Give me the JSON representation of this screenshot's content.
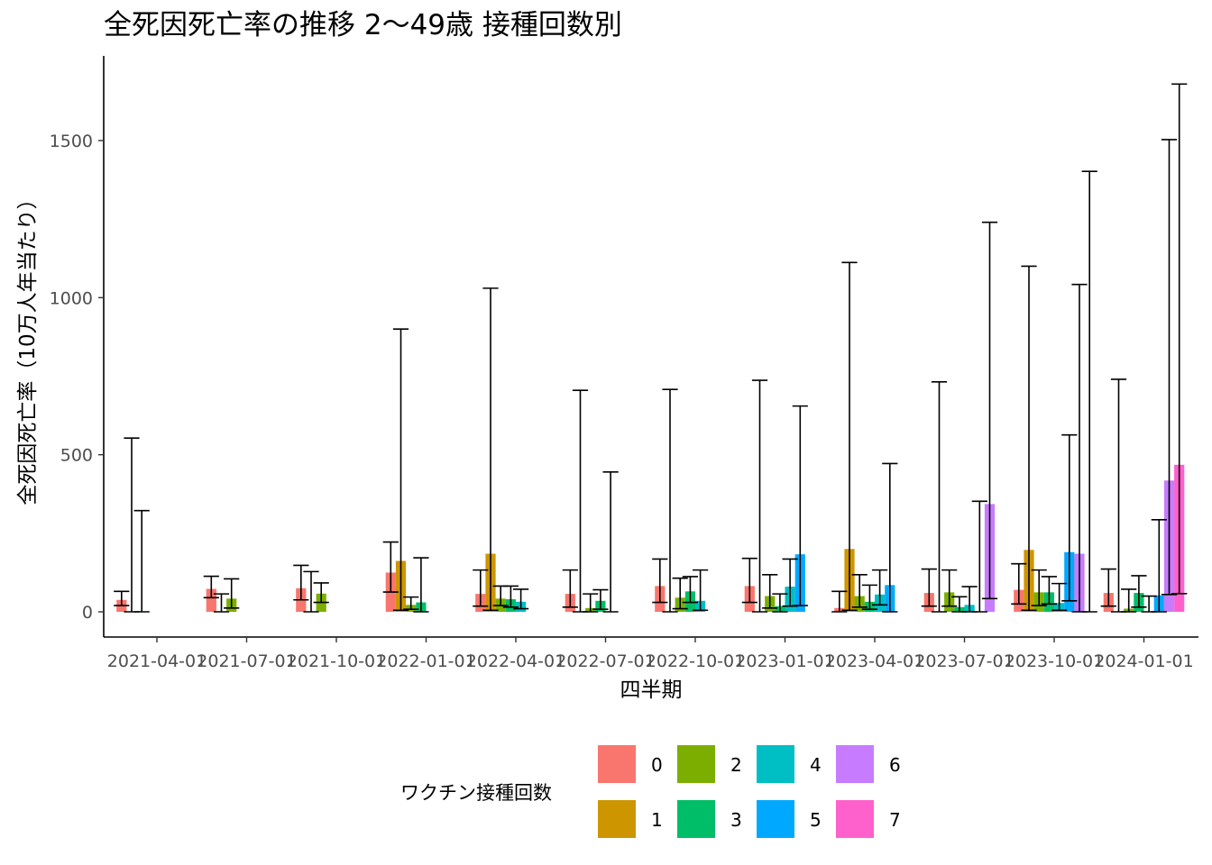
{
  "chart_data": {
    "type": "bar",
    "title": "全死因死亡率の推移  2〜49歳  接種回数別",
    "xlabel": "四半期",
    "ylabel": "全死因死亡率（10万人年当たり）",
    "ylim": [
      -80,
      1750
    ],
    "y_ticks": [
      0,
      500,
      1000,
      1500
    ],
    "grid": false,
    "categories": [
      "2021-04-01",
      "2021-07-01",
      "2021-10-01",
      "2022-01-01",
      "2022-04-01",
      "2022-07-01",
      "2022-10-01",
      "2023-01-01",
      "2023-04-01",
      "2023-07-01",
      "2023-10-01",
      "2024-01-01"
    ],
    "legend": {
      "title": "ワクチン接種回数",
      "position": "bottom",
      "items": [
        {
          "label": "0",
          "color": "#F8766D"
        },
        {
          "label": "1",
          "color": "#CD9600"
        },
        {
          "label": "2",
          "color": "#7CAE00"
        },
        {
          "label": "3",
          "color": "#00BE67"
        },
        {
          "label": "4",
          "color": "#00BFC4"
        },
        {
          "label": "5",
          "color": "#00A9FF"
        },
        {
          "label": "6",
          "color": "#C77CFF"
        },
        {
          "label": "7",
          "color": "#FF61CC"
        }
      ]
    },
    "series": [
      {
        "dose": "0",
        "color": "#F8766D",
        "values": [
          {
            "q": 0,
            "y": 38,
            "lo": 20,
            "hi": 65
          },
          {
            "q": 1,
            "y": 73,
            "lo": 45,
            "hi": 113
          },
          {
            "q": 2,
            "y": 75,
            "lo": 38,
            "hi": 148
          },
          {
            "q": 3,
            "y": 125,
            "lo": 63,
            "hi": 222
          },
          {
            "q": 4,
            "y": 57,
            "lo": 18,
            "hi": 133
          },
          {
            "q": 5,
            "y": 57,
            "lo": 15,
            "hi": 133
          },
          {
            "q": 6,
            "y": 82,
            "lo": 30,
            "hi": 168
          },
          {
            "q": 7,
            "y": 82,
            "lo": 30,
            "hi": 170
          },
          {
            "q": 8,
            "y": 12,
            "lo": 0,
            "hi": 65
          },
          {
            "q": 9,
            "y": 60,
            "lo": 18,
            "hi": 136
          },
          {
            "q": 10,
            "y": 70,
            "lo": 25,
            "hi": 153
          },
          {
            "q": 11,
            "y": 60,
            "lo": 18,
            "hi": 136
          }
        ]
      },
      {
        "dose": "1",
        "color": "#CD9600",
        "values": [
          {
            "q": 0,
            "y": 0,
            "lo": 0,
            "hi": 553
          },
          {
            "q": 1,
            "y": 0,
            "lo": 0,
            "hi": 57
          },
          {
            "q": 2,
            "y": 0,
            "lo": 0,
            "hi": 128
          },
          {
            "q": 3,
            "y": 162,
            "lo": 5,
            "hi": 900
          },
          {
            "q": 4,
            "y": 185,
            "lo": 5,
            "hi": 1030
          },
          {
            "q": 5,
            "y": 0,
            "lo": 0,
            "hi": 705
          },
          {
            "q": 6,
            "y": 0,
            "lo": 0,
            "hi": 708
          },
          {
            "q": 7,
            "y": 0,
            "lo": 0,
            "hi": 737
          },
          {
            "q": 8,
            "y": 200,
            "lo": 5,
            "hi": 1112
          },
          {
            "q": 9,
            "y": 0,
            "lo": 0,
            "hi": 732
          },
          {
            "q": 10,
            "y": 197,
            "lo": 5,
            "hi": 1100
          },
          {
            "q": 11,
            "y": 0,
            "lo": 0,
            "hi": 740
          }
        ]
      },
      {
        "dose": "2",
        "color": "#7CAE00",
        "values": [
          {
            "q": 0,
            "y": 0,
            "lo": 0,
            "hi": 322
          },
          {
            "q": 1,
            "y": 42,
            "lo": 12,
            "hi": 105
          },
          {
            "q": 2,
            "y": 58,
            "lo": 30,
            "hi": 92
          },
          {
            "q": 3,
            "y": 22,
            "lo": 8,
            "hi": 47
          },
          {
            "q": 4,
            "y": 42,
            "lo": 20,
            "hi": 82
          },
          {
            "q": 5,
            "y": 12,
            "lo": 0,
            "hi": 57
          },
          {
            "q": 6,
            "y": 45,
            "lo": 10,
            "hi": 107
          },
          {
            "q": 7,
            "y": 50,
            "lo": 12,
            "hi": 118
          },
          {
            "q": 8,
            "y": 50,
            "lo": 15,
            "hi": 118
          },
          {
            "q": 9,
            "y": 62,
            "lo": 18,
            "hi": 133
          },
          {
            "q": 10,
            "y": 62,
            "lo": 20,
            "hi": 133
          },
          {
            "q": 11,
            "y": 10,
            "lo": 0,
            "hi": 72
          }
        ]
      },
      {
        "dose": "3",
        "color": "#00BE67",
        "values": [
          {
            "q": 3,
            "y": 30,
            "lo": 0,
            "hi": 172
          },
          {
            "q": 4,
            "y": 40,
            "lo": 15,
            "hi": 82
          },
          {
            "q": 5,
            "y": 35,
            "lo": 8,
            "hi": 70
          },
          {
            "q": 6,
            "y": 65,
            "lo": 30,
            "hi": 112
          },
          {
            "q": 7,
            "y": 18,
            "lo": 0,
            "hi": 57
          },
          {
            "q": 8,
            "y": 32,
            "lo": 8,
            "hi": 85
          },
          {
            "q": 9,
            "y": 15,
            "lo": 0,
            "hi": 48
          },
          {
            "q": 10,
            "y": 62,
            "lo": 25,
            "hi": 112
          },
          {
            "q": 11,
            "y": 60,
            "lo": 15,
            "hi": 115
          }
        ]
      },
      {
        "dose": "4",
        "color": "#00BFC4",
        "values": [
          {
            "q": 4,
            "y": 32,
            "lo": 10,
            "hi": 72
          },
          {
            "q": 5,
            "y": 0,
            "lo": 0,
            "hi": 445
          },
          {
            "q": 6,
            "y": 35,
            "lo": 5,
            "hi": 133
          },
          {
            "q": 7,
            "y": 80,
            "lo": 18,
            "hi": 168
          },
          {
            "q": 8,
            "y": 55,
            "lo": 22,
            "hi": 133
          },
          {
            "q": 9,
            "y": 22,
            "lo": 0,
            "hi": 80
          },
          {
            "q": 10,
            "y": 28,
            "lo": 5,
            "hi": 90
          },
          {
            "q": 11,
            "y": 0,
            "lo": 0,
            "hi": 50
          }
        ]
      },
      {
        "dose": "5",
        "color": "#00A9FF",
        "values": [
          {
            "q": 7,
            "y": 183,
            "lo": 20,
            "hi": 655
          },
          {
            "q": 8,
            "y": 85,
            "lo": 0,
            "hi": 472
          },
          {
            "q": 9,
            "y": 0,
            "lo": 0,
            "hi": 352
          },
          {
            "q": 10,
            "y": 190,
            "lo": 35,
            "hi": 563
          },
          {
            "q": 11,
            "y": 52,
            "lo": 0,
            "hi": 293
          }
        ]
      },
      {
        "dose": "6",
        "color": "#C77CFF",
        "values": [
          {
            "q": 9,
            "y": 343,
            "lo": 42,
            "hi": 1240
          },
          {
            "q": 10,
            "y": 185,
            "lo": 0,
            "hi": 1042
          },
          {
            "q": 11,
            "y": 418,
            "lo": 55,
            "hi": 1503
          }
        ]
      },
      {
        "dose": "7",
        "color": "#FF61CC",
        "values": [
          {
            "q": 10,
            "y": 0,
            "lo": 0,
            "hi": 1402
          },
          {
            "q": 11,
            "y": 468,
            "lo": 58,
            "hi": 1680
          }
        ]
      }
    ]
  }
}
